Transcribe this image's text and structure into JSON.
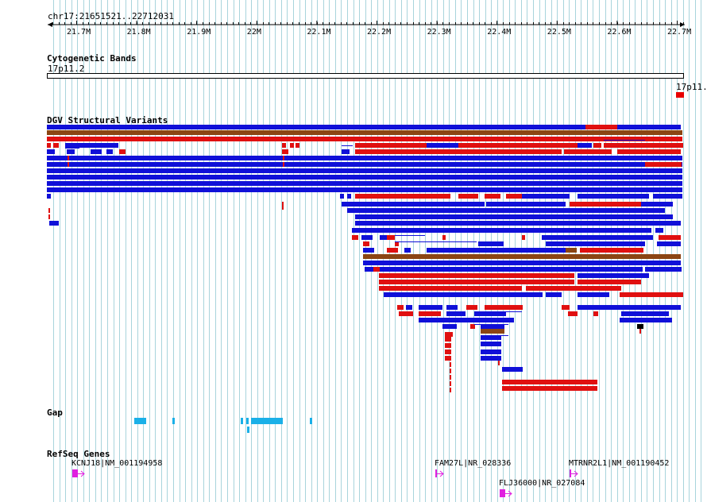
{
  "ruler": {
    "region": "chr17:21651521..22712031",
    "ticks": [
      "21.7M",
      "21.8M",
      "21.9M",
      "22M",
      "22.1M",
      "22.2M",
      "22.3M",
      "22.4M",
      "22.5M",
      "22.6M",
      "22.7M"
    ]
  },
  "tracks": {
    "cyto": {
      "title": "Cytogenetic Bands",
      "band_left": "17p11.2",
      "band_right": "17p11.1"
    },
    "dgv": {
      "title": "DGV Structural Variants"
    },
    "gap": {
      "title": "Gap"
    },
    "refseq": {
      "title": "RefSeq Genes",
      "genes": [
        {
          "label": "KCNJ18|NM_001194958"
        },
        {
          "label": "FAM27L|NR_028336"
        },
        {
          "label": "FLJ36000|NR_027084"
        },
        {
          "label": "MTRNR2L1|NM_001190452"
        }
      ]
    }
  },
  "colors": {
    "gain": "#1010d8",
    "loss": "#e01010",
    "both": "#8b4513",
    "gap": "#1ab0e8",
    "gene": "#e020e0",
    "grid": "#a8d4dc"
  }
}
